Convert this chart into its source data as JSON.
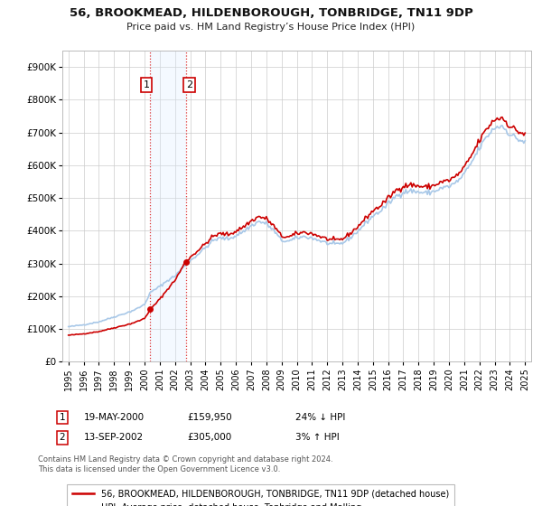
{
  "title": "56, BROOKMEAD, HILDENBOROUGH, TONBRIDGE, TN11 9DP",
  "subtitle": "Price paid vs. HM Land Registry’s House Price Index (HPI)",
  "hpi_color": "#a8c8e8",
  "price_color": "#cc0000",
  "shade_color": "#ddeeff",
  "background_color": "#ffffff",
  "grid_color": "#cccccc",
  "ylim": [
    0,
    950000
  ],
  "yticks": [
    0,
    100000,
    200000,
    300000,
    400000,
    500000,
    600000,
    700000,
    800000,
    900000
  ],
  "ytick_labels": [
    "£0",
    "£100K",
    "£200K",
    "£300K",
    "£400K",
    "£500K",
    "£600K",
    "£700K",
    "£800K",
    "£900K"
  ],
  "legend_entry1": "56, BROOKMEAD, HILDENBOROUGH, TONBRIDGE, TN11 9DP (detached house)",
  "legend_entry2": "HPI: Average price, detached house, Tonbridge and Malling",
  "annotation1_date": "19-MAY-2000",
  "annotation1_price": "£159,950",
  "annotation1_hpi": "24% ↓ HPI",
  "annotation2_date": "13-SEP-2002",
  "annotation2_price": "£305,000",
  "annotation2_hpi": "3% ↑ HPI",
  "footnote1": "Contains HM Land Registry data © Crown copyright and database right 2024.",
  "footnote2": "This data is licensed under the Open Government Licence v3.0.",
  "sale1_x": 2000.371,
  "sale1_y": 159950,
  "sale2_x": 2002.706,
  "sale2_y": 305000,
  "shade_x1": 2000.371,
  "shade_x2": 2002.706,
  "xlim_left": 1994.6,
  "xlim_right": 2025.4
}
